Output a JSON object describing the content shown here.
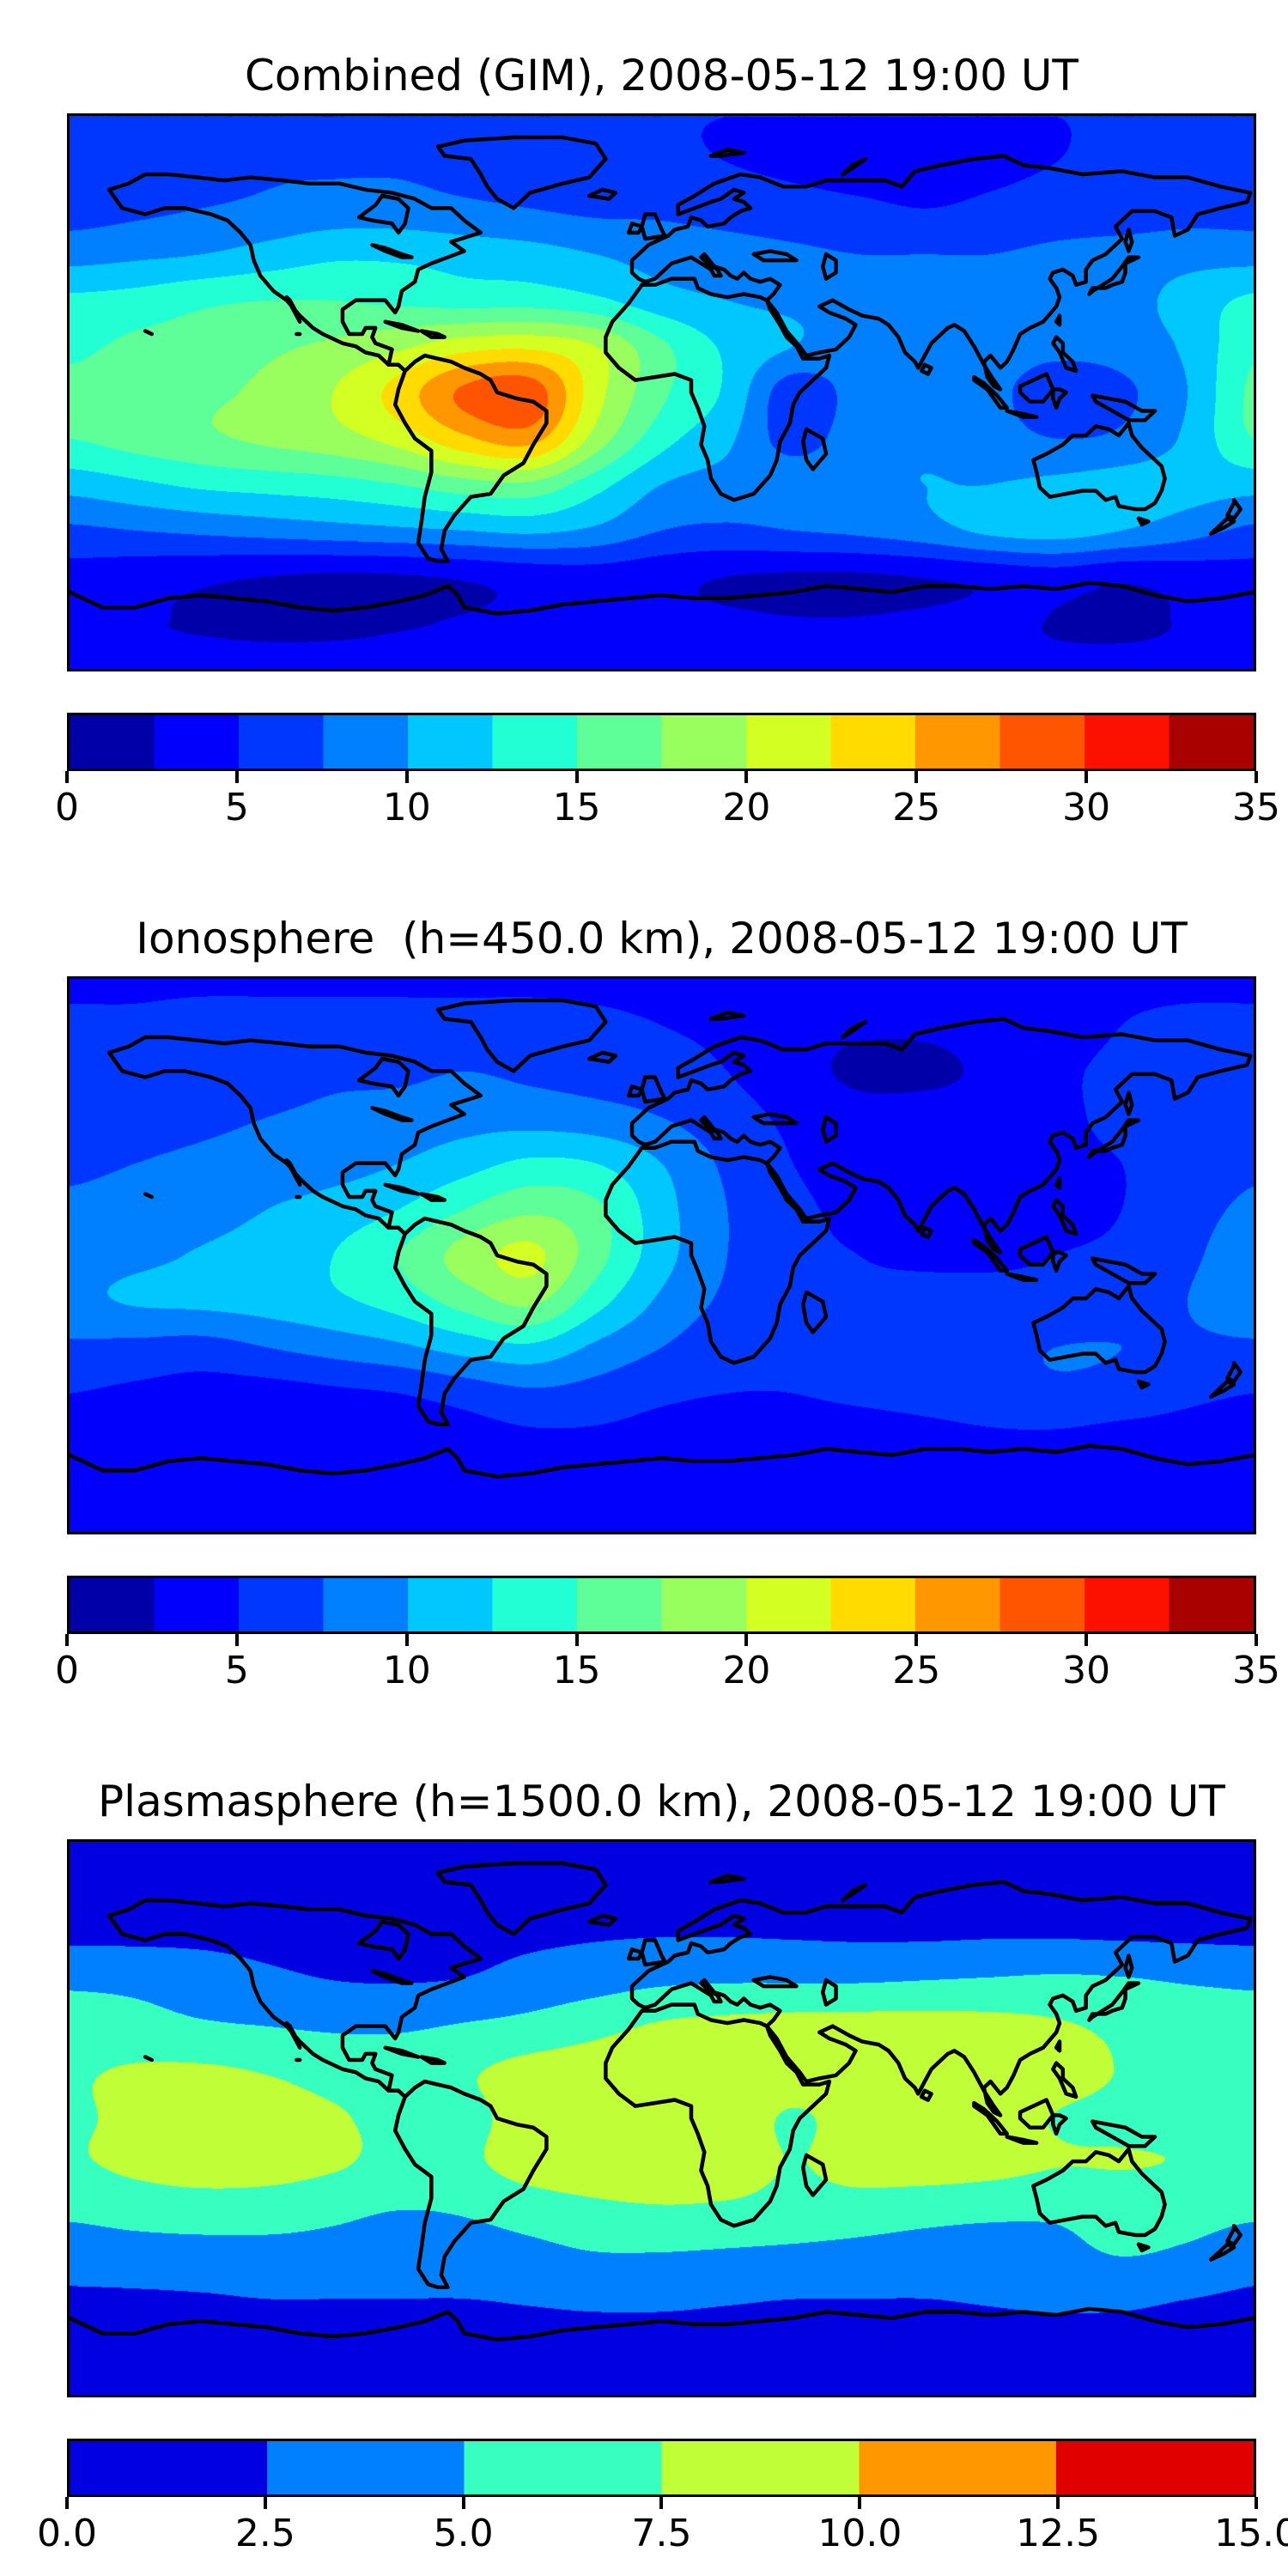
{
  "figure": {
    "background": "#ffffff",
    "colormap": "jet",
    "projection": "equirectangular",
    "coastline_color": "#000000"
  },
  "chart_data": [
    {
      "type": "filled-contour-map",
      "title": "Combined (GIM), 2008-05-12 19:00 UT",
      "colormap": "jet",
      "value_min": 0,
      "value_max": 35,
      "n_levels": 14,
      "level_step": 2.5,
      "colorbar": {
        "orientation": "horizontal",
        "ticks": [
          "0",
          "5",
          "10",
          "15",
          "20",
          "25",
          "30",
          "35"
        ]
      },
      "lon_range": [
        -180,
        180
      ],
      "lat_range": [
        -90,
        90
      ],
      "grid": {
        "lons": [
          -180,
          -160,
          -140,
          -120,
          -100,
          -80,
          -60,
          -40,
          -20,
          0,
          20,
          40,
          60,
          80,
          100,
          120,
          140,
          160,
          180
        ],
        "lats": [
          90,
          75,
          60,
          45,
          30,
          15,
          0,
          -15,
          -30,
          -45,
          -60,
          -75,
          -90
        ],
        "values": [
          [
            5,
            5,
            5,
            5,
            5,
            5,
            5,
            5,
            5,
            5,
            5,
            5,
            5,
            5,
            5,
            5,
            5,
            5,
            5
          ],
          [
            6,
            6.5,
            6.5,
            7,
            7,
            7,
            6.5,
            6.5,
            6,
            5.5,
            5,
            4.5,
            4,
            4,
            4.5,
            5,
            5.5,
            6,
            6
          ],
          [
            6.5,
            7,
            7.5,
            8,
            8.5,
            8.5,
            8,
            7.5,
            7,
            7,
            6.5,
            6,
            5.5,
            5,
            5.5,
            6,
            6,
            6.5,
            6.5
          ],
          [
            9,
            9.5,
            10,
            11,
            12,
            12,
            11.5,
            11,
            10,
            9,
            8.5,
            8,
            7.5,
            7.5,
            7.5,
            8,
            8.5,
            9,
            9
          ],
          [
            13,
            13.5,
            14.5,
            15,
            15,
            14.5,
            14,
            14,
            13,
            11,
            10,
            9.5,
            9,
            9,
            8.5,
            8.5,
            9,
            11,
            13
          ],
          [
            14.5,
            15.5,
            16,
            17,
            18,
            19.5,
            21.5,
            22,
            20,
            15.5,
            12,
            10,
            9,
            9,
            8.5,
            8,
            8.5,
            10.5,
            14.5
          ],
          [
            15.5,
            16,
            17,
            18,
            20,
            23.5,
            28,
            29,
            21,
            15.5,
            12,
            6,
            8.5,
            8.5,
            8,
            6.5,
            7,
            10,
            15.5
          ],
          [
            15,
            16,
            17,
            18,
            19,
            21,
            24.5,
            26,
            19,
            13.5,
            10.5,
            6.5,
            9,
            9.5,
            8.5,
            7.5,
            8,
            10.5,
            15
          ],
          [
            11,
            12,
            13,
            13.5,
            14,
            15,
            16.5,
            17,
            13.5,
            10,
            9,
            9,
            9.5,
            10,
            10,
            10.5,
            11,
            11,
            11
          ],
          [
            7,
            7.5,
            8,
            8.5,
            9,
            9.5,
            10,
            10.5,
            9.5,
            7.5,
            7,
            7.5,
            8,
            9,
            10.5,
            11,
            10,
            8.5,
            7
          ],
          [
            4,
            3.5,
            3,
            2.5,
            2.2,
            2.3,
            2.8,
            3.5,
            3.8,
            3.2,
            2.5,
            2.2,
            2.2,
            2.6,
            3.2,
            3.8,
            3,
            3.5,
            4
          ],
          [
            2.8,
            2.6,
            2.4,
            2.2,
            2.2,
            2.4,
            2.6,
            3,
            3.2,
            3,
            2.8,
            2.6,
            2.6,
            2.8,
            3,
            2.4,
            2.2,
            2.6,
            2.8
          ],
          [
            3,
            3,
            3,
            3,
            3,
            3,
            3,
            3,
            3,
            3,
            3,
            3,
            3,
            3,
            3,
            3,
            3,
            3,
            3
          ]
        ]
      }
    },
    {
      "type": "filled-contour-map",
      "title": "Ionosphere  (h=450.0 km), 2008-05-12 19:00 UT",
      "colormap": "jet",
      "value_min": 0,
      "value_max": 35,
      "n_levels": 14,
      "level_step": 2.5,
      "colorbar": {
        "orientation": "horizontal",
        "ticks": [
          "0",
          "5",
          "10",
          "15",
          "20",
          "25",
          "30",
          "35"
        ]
      },
      "lon_range": [
        -180,
        180
      ],
      "lat_range": [
        -90,
        90
      ],
      "grid": {
        "lons": [
          -180,
          -160,
          -140,
          -120,
          -100,
          -80,
          -60,
          -40,
          -20,
          0,
          20,
          40,
          60,
          80,
          100,
          120,
          140,
          160,
          180
        ],
        "lats": [
          90,
          75,
          60,
          45,
          30,
          15,
          0,
          -15,
          -30,
          -45,
          -60,
          -75,
          -90
        ],
        "values": [
          [
            4.5,
            4.5,
            4.5,
            4.5,
            4.5,
            4.5,
            4.5,
            4.5,
            4.5,
            4.5,
            4.5,
            4.5,
            4.5,
            4.5,
            4.5,
            4.5,
            4.5,
            4.5,
            4.5
          ],
          [
            5.5,
            5.5,
            6,
            6,
            6,
            6,
            6,
            6,
            5.5,
            5,
            4.5,
            3.5,
            3,
            3,
            3.5,
            4,
            5,
            5.5,
            5.5
          ],
          [
            6,
            6,
            6.5,
            6.5,
            7,
            7,
            7.5,
            7,
            6.5,
            6,
            5,
            3.5,
            2,
            2,
            3,
            4.5,
            5.5,
            6,
            6
          ],
          [
            6,
            6.5,
            7,
            7.5,
            8,
            8.5,
            9,
            9,
            8.5,
            7.5,
            6,
            4.5,
            3.5,
            3.5,
            3.5,
            4.5,
            5.5,
            6,
            6
          ],
          [
            7,
            7.5,
            8,
            8.5,
            9,
            10,
            11.5,
            13,
            12.5,
            10,
            7,
            5,
            4,
            4,
            4,
            4.5,
            5,
            6,
            7
          ],
          [
            8,
            8.5,
            9,
            10,
            11,
            12.5,
            15,
            17,
            15.5,
            11,
            7.5,
            5.5,
            4.5,
            4,
            4,
            4.5,
            5,
            6.5,
            8
          ],
          [
            9,
            9.5,
            10.2,
            11,
            12.5,
            15,
            18.5,
            20.6,
            16,
            11,
            7.5,
            5.5,
            5,
            4.5,
            4.5,
            5,
            5.5,
            7,
            9
          ],
          [
            9.5,
            10.2,
            10.5,
            11,
            12,
            13.5,
            16,
            18,
            13.5,
            9.5,
            7,
            5.5,
            5.5,
            6,
            6,
            6,
            6.5,
            7.5,
            9.5
          ],
          [
            7,
            6.8,
            6.5,
            7.5,
            8.5,
            9.5,
            11,
            12,
            9.5,
            7.5,
            6,
            5.5,
            6,
            6.5,
            7,
            7.5,
            7.5,
            7,
            7
          ],
          [
            5,
            4.5,
            4,
            4,
            4.5,
            5,
            6,
            7,
            6.5,
            5.5,
            5,
            5,
            5.5,
            6,
            6.5,
            7,
            6.5,
            5.5,
            5
          ],
          [
            4,
            3.5,
            3,
            3,
            3,
            3.5,
            4,
            4.5,
            4.5,
            4,
            3.5,
            3.5,
            3.5,
            4,
            4.5,
            4.5,
            4,
            4,
            4
          ],
          [
            3,
            3,
            3,
            3,
            3,
            3.5,
            3.5,
            3.5,
            3.5,
            3.5,
            3,
            3,
            3,
            3.5,
            3.5,
            3.5,
            3,
            3,
            3
          ],
          [
            3,
            3,
            3,
            3,
            3,
            3,
            3,
            3,
            3,
            3,
            3,
            3,
            3,
            3,
            3,
            3,
            3,
            3,
            3
          ]
        ]
      }
    },
    {
      "type": "filled-contour-map",
      "title": "Plasmasphere (h=1500.0 km), 2008-05-12 19:00 UT",
      "colormap": "jet",
      "value_min": 0,
      "value_max": 15,
      "n_levels": 6,
      "level_step": 2.5,
      "colorbar": {
        "orientation": "horizontal",
        "ticks": [
          "0.0",
          "2.5",
          "5.0",
          "7.5",
          "10.0",
          "12.5",
          "15.0"
        ]
      },
      "lon_range": [
        -180,
        180
      ],
      "lat_range": [
        -90,
        90
      ],
      "grid": {
        "lons": [
          -180,
          -160,
          -140,
          -120,
          -100,
          -80,
          -60,
          -40,
          -20,
          0,
          20,
          40,
          60,
          80,
          100,
          120,
          140,
          160,
          180
        ],
        "lats": [
          90,
          75,
          60,
          45,
          30,
          15,
          0,
          -15,
          -30,
          -45,
          -60,
          -75,
          -90
        ],
        "values": [
          [
            1.6,
            1.6,
            1.6,
            1.6,
            1.6,
            1.6,
            1.6,
            1.6,
            1.6,
            1.6,
            1.6,
            1.6,
            1.6,
            1.6,
            1.6,
            1.6,
            1.6,
            1.6,
            1.6
          ],
          [
            1.8,
            1.8,
            1.8,
            1.8,
            1.8,
            1.8,
            1.8,
            1.8,
            1.8,
            1.8,
            1.8,
            1.8,
            1.8,
            1.8,
            1.8,
            1.8,
            1.8,
            1.8,
            1.8
          ],
          [
            2,
            2,
            2,
            1.9,
            1.9,
            1.9,
            1.9,
            2.1,
            2.3,
            2.4,
            2.4,
            2.3,
            2.2,
            2.2,
            2.3,
            2.3,
            2.2,
            2.1,
            2
          ],
          [
            4.6,
            4.4,
            3.8,
            3,
            2.5,
            2.4,
            2.6,
            3.4,
            4,
            4.6,
            4.8,
            4.8,
            4.8,
            5,
            5.2,
            5.4,
            5.2,
            4.8,
            4.6
          ],
          [
            6,
            5.8,
            5.3,
            5,
            4.7,
            4.7,
            5.2,
            5.8,
            6.8,
            7.8,
            8.2,
            8.4,
            8.5,
            8.5,
            8.3,
            7.8,
            7,
            6.4,
            6
          ],
          [
            7.2,
            7.8,
            7.9,
            7.4,
            6.6,
            6.4,
            7.2,
            8.4,
            8.8,
            9,
            9.3,
            8.9,
            9.2,
            9.3,
            9,
            8.4,
            7.4,
            7,
            7.2
          ],
          [
            7.2,
            8,
            8.5,
            8.6,
            7.8,
            6.8,
            6.8,
            8.6,
            9.2,
            9.4,
            9.2,
            7.2,
            8.8,
            9.3,
            8.8,
            7.4,
            7,
            7,
            7.2
          ],
          [
            7.2,
            8,
            8.6,
            8.6,
            7.8,
            6.8,
            7,
            8.6,
            9.3,
            9.4,
            9,
            7.4,
            8.6,
            8.8,
            8.4,
            7.6,
            7.6,
            7.4,
            7.2
          ],
          [
            5.5,
            6,
            6.2,
            6,
            5.5,
            5,
            5.2,
            6,
            6.8,
            7.2,
            7,
            6.5,
            6.2,
            5.8,
            5.5,
            5.4,
            6,
            6,
            5.5
          ],
          [
            3.5,
            3.8,
            4,
            4.2,
            4.2,
            4,
            4,
            4.3,
            4.8,
            4.8,
            4.6,
            4.4,
            4.2,
            4,
            4,
            4.3,
            5,
            4.5,
            3.5
          ],
          [
            2.1,
            2.1,
            2.2,
            2.4,
            2.4,
            2.4,
            2.4,
            2.6,
            2.8,
            2.8,
            2.6,
            2.4,
            2.4,
            2.4,
            2.6,
            2.8,
            2.8,
            2.4,
            2.1
          ],
          [
            1.7,
            1.7,
            1.7,
            1.7,
            1.7,
            1.7,
            1.7,
            1.7,
            1.7,
            1.7,
            1.7,
            1.7,
            1.7,
            1.7,
            1.7,
            1.7,
            1.7,
            1.7,
            1.7
          ],
          [
            1.6,
            1.6,
            1.6,
            1.6,
            1.6,
            1.6,
            1.6,
            1.6,
            1.6,
            1.6,
            1.6,
            1.6,
            1.6,
            1.6,
            1.6,
            1.6,
            1.6,
            1.6,
            1.6
          ]
        ]
      }
    }
  ]
}
